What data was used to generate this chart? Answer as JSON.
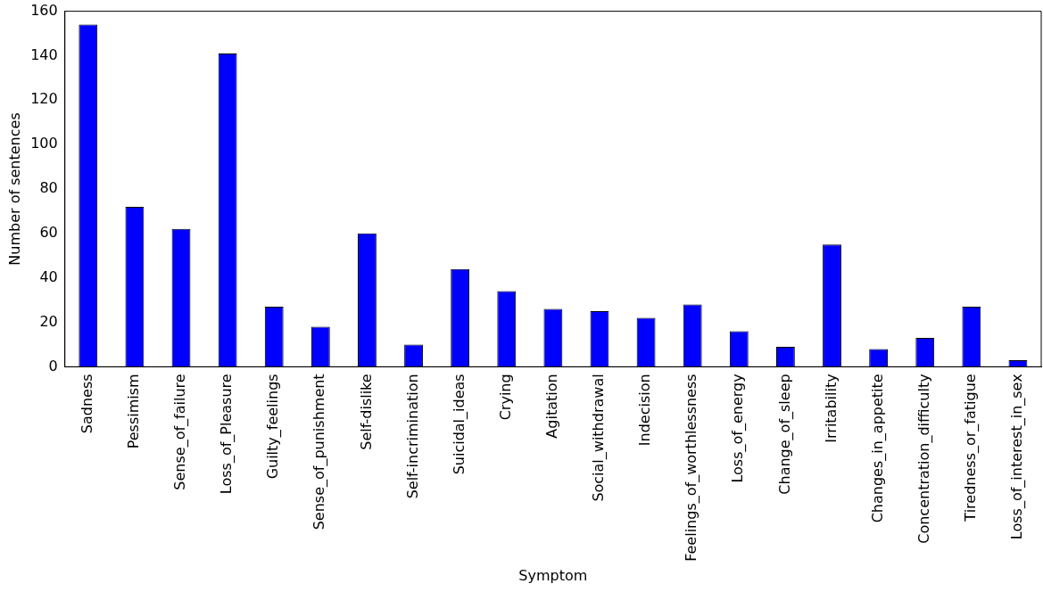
{
  "chart_data": {
    "type": "bar",
    "xlabel": "Symptom",
    "ylabel": "Number of sentences",
    "categories": [
      "Sadness",
      "Pessimism",
      "Sense_of_failure",
      "Loss_of_Pleasure",
      "Guilty_feelings",
      "Sense_of_punishment",
      "Self-dislike",
      "Self-incrimination",
      "Suicidal_ideas",
      "Crying",
      "Agitation",
      "Social_withdrawal",
      "Indecision",
      "Feelings_of_worthlessness",
      "Loss_of_energy",
      "Change_of_sleep",
      "Irritability",
      "Changes_in_appetite",
      "Concentration_difficulty",
      "Tiredness_or_fatigue",
      "Loss_of_interest_in_sex"
    ],
    "values": [
      154,
      72,
      62,
      141,
      27,
      18,
      60,
      10,
      44,
      34,
      26,
      25,
      22,
      28,
      16,
      9,
      55,
      8,
      13,
      27,
      3
    ],
    "color": "#0000ff",
    "ylim": [
      0,
      160
    ],
    "yticks": [
      0,
      20,
      40,
      60,
      80,
      100,
      120,
      140,
      160
    ],
    "grid": false
  }
}
